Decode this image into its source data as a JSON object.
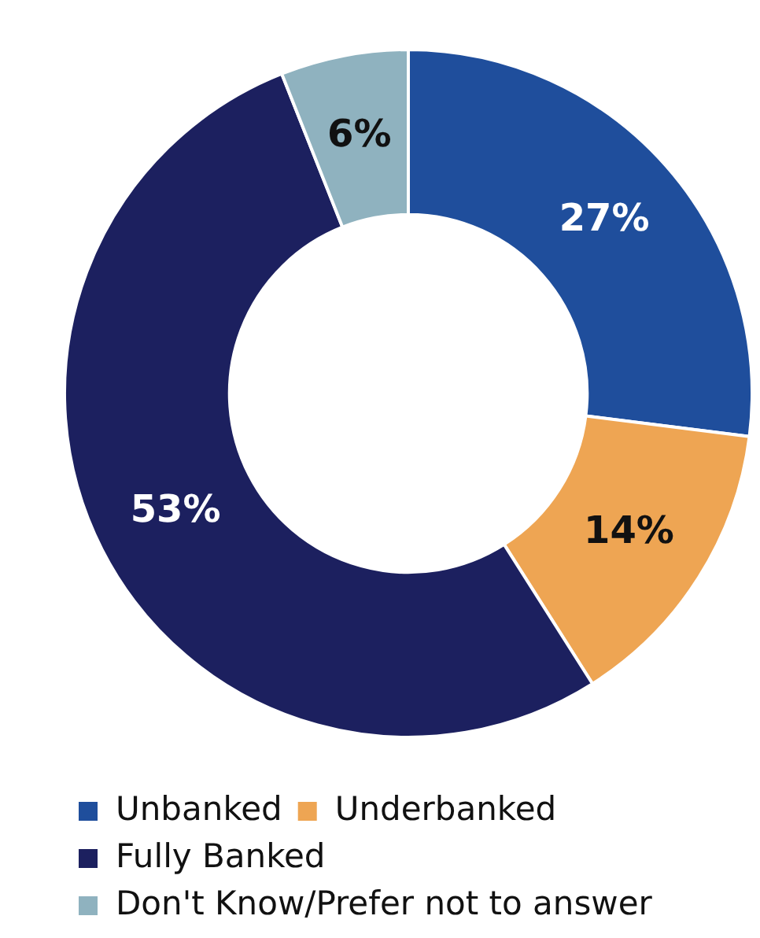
{
  "chart_data": {
    "type": "donut",
    "categories": [
      "Unbanked",
      "Underbanked",
      "Fully Banked",
      "Don't Know/Prefer not to answer"
    ],
    "values": [
      27,
      14,
      53,
      6
    ],
    "colors": [
      "#1f4e9c",
      "#eea553",
      "#1c205f",
      "#8fb2bf"
    ],
    "value_labels": [
      "27%",
      "14%",
      "53%",
      "6%"
    ],
    "legend": "bottom left"
  }
}
